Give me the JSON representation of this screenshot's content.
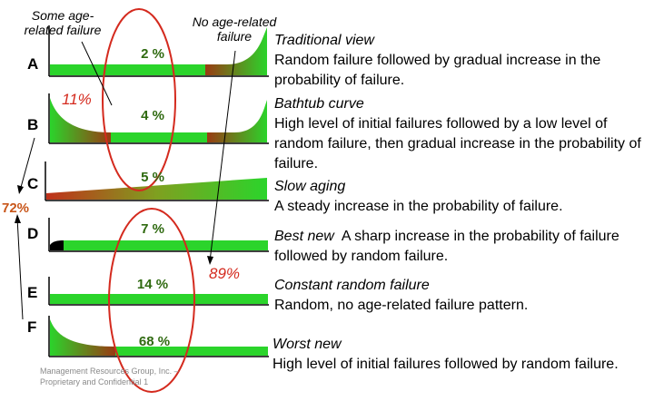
{
  "callouts": {
    "some_age": "Some age-related failure",
    "no_age": "No age-related failure"
  },
  "rows": [
    {
      "letter": "A",
      "percent": "2 %",
      "title": "Traditional view",
      "text": "Random failure followed by gradual increase in the probability of failure."
    },
    {
      "letter": "B",
      "percent": "4 %",
      "title": "Bathtub curve",
      "text": "High level of initial failures followed by a low level of random failure, then gradual increase in the probability of failure."
    },
    {
      "letter": "C",
      "percent": "5 %",
      "title": "Slow aging",
      "text": "A steady increase in the probability of failure."
    },
    {
      "letter": "D",
      "percent": "7 %",
      "title": "Best new",
      "text": "A sharp increase in the probability of failure followed by random failure."
    },
    {
      "letter": "E",
      "percent": "14 %",
      "title": "Constant random failure",
      "text": "Random, no age-related failure pattern."
    },
    {
      "letter": "F",
      "percent": "68 %",
      "title": "Worst new",
      "text": "High level of initial failures followed by random failure."
    }
  ],
  "totals": {
    "age_related_share": "11%",
    "non_age_share": "89%",
    "aging_total": "72%"
  },
  "footer": "Management Resources Group, Inc. – Proprietary and Confidential 1",
  "colors": {
    "green": "#2bd42b",
    "dark_brown": "#8a3210",
    "red_ellipse": "#d42a1e",
    "percent_text": "#2f6a10",
    "total_text": "#c8561a"
  }
}
